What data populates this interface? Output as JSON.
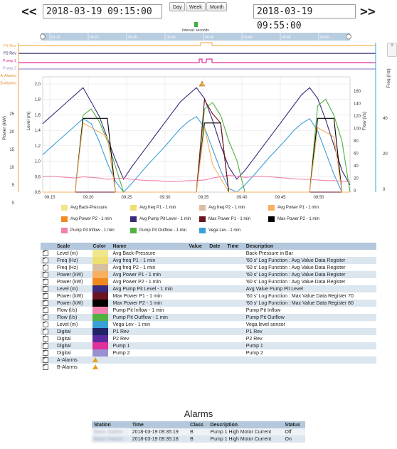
{
  "nav": {
    "prev": "<<",
    "next": ">>",
    "start": "2018-03-19 09:15:00",
    "end": "2018-03-19 09:55:00",
    "buttons": [
      "Day",
      "Week",
      "Month"
    ],
    "interval_label": "Interval: seconds"
  },
  "digital_labels": [
    "P1 Rev",
    "P2 Rev",
    "Pump 1",
    "Pump 2",
    "A-Alarms",
    "B-Alarms"
  ],
  "axes": {
    "power_label": "Power (kW)",
    "level_label": "Level (m)",
    "flow_label": "Flow (l/s)",
    "freq_label": "Freq (Hz)",
    "power_ticks": [
      "25",
      "20",
      "15",
      "10",
      "5",
      "0"
    ],
    "level_ticks": [
      "2,0",
      "1,8",
      "1,6",
      "1,4",
      "1,2",
      "1,0",
      "0,8",
      "0,6"
    ],
    "flow_ticks": [
      "160",
      "140",
      "120",
      "100",
      "80",
      "60",
      "40",
      "20",
      "0"
    ],
    "freq_ticks": [
      "40",
      "20",
      "0"
    ],
    "time_ticks": [
      "09:15",
      "09:20",
      "09:25",
      "09:30",
      "09:35",
      "09:40",
      "09:45",
      "09:50"
    ],
    "nav_ticks": [
      "09:15",
      "09:20",
      "09:25",
      "09:30",
      "09:35",
      "09:40",
      "09:45",
      "09:50"
    ]
  },
  "legend": [
    {
      "label": "Avg Back-Pressure",
      "color": "#f0e68c"
    },
    {
      "label": "Avg freq P1 - 1 min",
      "color": "#ede070"
    },
    {
      "label": "Avg freq P2 - 1 min",
      "color": "#d8bfa0"
    },
    {
      "label": "Avg Power P1 - 1 min",
      "color": "#f8b060"
    },
    {
      "label": "Avg Power P2 - 1 min",
      "color": "#f08a20"
    },
    {
      "label": "Avg Pump Pit Level - 1 min",
      "color": "#3a2a7a"
    },
    {
      "label": "Max Power P1 - 1 min",
      "color": "#6b1520"
    },
    {
      "label": "Max Power P2 - 1 min",
      "color": "#000000"
    },
    {
      "label": "Pump Pit Inflow - 1 min",
      "color": "#f080b0"
    },
    {
      "label": "Pump Pit Outflow - 1 min",
      "color": "#50b040"
    },
    {
      "label": "Vega Lev - 1 min",
      "color": "#3aa0d8"
    }
  ],
  "scale_table": {
    "headers": [
      "Scale",
      "Color",
      "Name",
      "Value",
      "Date",
      "Time",
      "Description"
    ],
    "rows": [
      {
        "scale": "Level (m)",
        "color": "#f0e68c",
        "name": "Avg Back-Pressure",
        "desc": "Back-Pressure in Bar"
      },
      {
        "scale": "Freq (Hz)",
        "color": "#ede070",
        "name": "Avg freq P1 - 1 min",
        "desc": "'60 s' Log Function : Avg Value Data Register"
      },
      {
        "scale": "Freq (Hz)",
        "color": "#d8bfa0",
        "name": "Avg freq P2 - 1 min",
        "desc": "'60 s' Log Function : Avg Value Data Register"
      },
      {
        "scale": "Power (kW)",
        "color": "#f8b060",
        "name": "Avg Power P1 - 1 min",
        "desc": "'60 s' Log Function : Avg Value Data Register"
      },
      {
        "scale": "Power (kW)",
        "color": "#f08a20",
        "name": "Avg Power P2 - 1 min",
        "desc": "'60 s' Log Function : Avg Value Data Register"
      },
      {
        "scale": "Level (m)",
        "color": "#3a2a7a",
        "name": "Avg Pump Pit Level - 1 min",
        "desc": "Avg Value Pump Pit Level"
      },
      {
        "scale": "Power (kW)",
        "color": "#6b1520",
        "name": "Max Power P1 - 1 min",
        "desc": "'60 s' Log Function : Max Value Data Register 70"
      },
      {
        "scale": "Power (kW)",
        "color": "#000000",
        "name": "Max Power P2 - 1 min",
        "desc": "'60 s' Log Function : Max Value Data Register 80"
      },
      {
        "scale": "Flow (l/s)",
        "color": "#f080b0",
        "name": "Pump Pit Inflow - 1 min",
        "desc": "Pump Pit Inflow"
      },
      {
        "scale": "Flow (l/s)",
        "color": "#50b040",
        "name": "Pump Pit Outflow - 1 min",
        "desc": "Pump Pit Outflow"
      },
      {
        "scale": "Level (m)",
        "color": "#3aa0d8",
        "name": "Vega Lev - 1 min",
        "desc": "Vega level sensor"
      },
      {
        "scale": "Digital",
        "color": "#222266",
        "name": "P1 Rev",
        "desc": "P1 Rev"
      },
      {
        "scale": "Digital",
        "color": "#5a2aa0",
        "name": "P2 Rev",
        "desc": "P2 Rev"
      },
      {
        "scale": "Digital",
        "color": "#e0309a",
        "name": "Pump 1",
        "desc": "Pump 1"
      },
      {
        "scale": "Digital",
        "color": "#9a8fd0",
        "name": "Pump 2",
        "desc": "Pump 2"
      },
      {
        "scale": "A-Alarms",
        "color": "",
        "name": "",
        "desc": "",
        "icon": "warning-icon"
      },
      {
        "scale": "B-Alarms",
        "color": "",
        "name": "",
        "desc": "",
        "icon": "warning-icon"
      }
    ]
  },
  "alarms": {
    "title": "Alarms",
    "headers": [
      "Station",
      "Time",
      "Class",
      "Description",
      "Status"
    ],
    "rows": [
      {
        "station": "Basic Station",
        "time": "2018-03-19 09:35:19",
        "class": "B",
        "desc": "Pump 1 High Motor Current",
        "status": "Off"
      },
      {
        "station": "Basic Station",
        "time": "2018-03-19 09:35:18",
        "class": "B",
        "desc": "Pump 1 High Motor Current",
        "status": "On"
      }
    ]
  },
  "chart_data": {
    "type": "line",
    "x": [
      "09:15",
      "09:16",
      "09:17",
      "09:18",
      "09:19",
      "09:20",
      "09:21",
      "09:22",
      "09:23",
      "09:24",
      "09:25",
      "09:26",
      "09:27",
      "09:28",
      "09:29",
      "09:30",
      "09:31",
      "09:32",
      "09:33",
      "09:34",
      "09:35",
      "09:36",
      "09:37",
      "09:38",
      "09:39",
      "09:40",
      "09:41",
      "09:42",
      "09:43",
      "09:44",
      "09:45",
      "09:46",
      "09:47",
      "09:48",
      "09:49",
      "09:50",
      "09:51",
      "09:52",
      "09:53"
    ],
    "series": [
      {
        "name": "Avg Pump Pit Level - 1 min",
        "axis": "level",
        "color": "#3a2a7a",
        "values": [
          1.55,
          1.65,
          1.75,
          1.85,
          1.95,
          2.05,
          1.85,
          1.65,
          1.35,
          1.05,
          0.78,
          0.95,
          1.1,
          1.25,
          1.4,
          1.55,
          1.7,
          1.85,
          1.95,
          2.05,
          1.9,
          1.6,
          1.25,
          0.95,
          0.78,
          0.9,
          1.05,
          1.2,
          1.35,
          1.5,
          1.65,
          1.8,
          1.95,
          2.05,
          1.9,
          1.6,
          1.25,
          0.9,
          0.7
        ]
      },
      {
        "name": "Vega Lev - 1 min",
        "axis": "level",
        "color": "#3aa0d8",
        "values": [
          1.12,
          1.22,
          1.32,
          1.42,
          1.52,
          1.62,
          1.55,
          1.3,
          1.0,
          0.75,
          0.6,
          0.72,
          0.85,
          0.98,
          1.1,
          1.22,
          1.35,
          1.48,
          1.58,
          1.65,
          1.5,
          1.2,
          0.9,
          0.65,
          0.6,
          0.7,
          0.82,
          0.95,
          1.08,
          1.2,
          1.32,
          1.45,
          1.55,
          1.62,
          1.45,
          1.15,
          0.85,
          0.6,
          0.6
        ]
      },
      {
        "name": "Pump Pit Inflow - 1 min",
        "axis": "flow",
        "color": "#f080b0",
        "values": [
          24,
          25,
          24,
          23,
          22,
          24,
          23,
          22,
          20,
          21,
          22,
          20,
          19,
          18,
          18,
          17,
          16,
          17,
          18,
          18,
          19,
          22,
          24,
          26,
          25,
          23,
          24,
          25,
          24,
          23,
          22,
          21,
          20,
          20,
          19,
          18,
          18,
          17,
          16
        ]
      },
      {
        "name": "Pump Pit Outflow - 1 min",
        "axis": "flow",
        "color": "#50b040",
        "values": [
          0,
          0,
          0,
          0,
          0,
          120,
          130,
          110,
          80,
          40,
          0,
          0,
          0,
          0,
          0,
          0,
          0,
          0,
          0,
          0,
          130,
          140,
          120,
          80,
          50,
          0,
          0,
          0,
          0,
          0,
          0,
          0,
          0,
          0,
          135,
          145,
          120,
          80,
          0
        ]
      },
      {
        "name": "Max Power P2 - 1 min",
        "axis": "power",
        "color": "#000000",
        "values": [
          0,
          0,
          0,
          0,
          0,
          16,
          16,
          16,
          16,
          0,
          0,
          0,
          0,
          0,
          0,
          0,
          0,
          0,
          0,
          0,
          15,
          15,
          15,
          0,
          0,
          0,
          0,
          0,
          0,
          0,
          0,
          0,
          0,
          0,
          16,
          16,
          16,
          0,
          0
        ]
      },
      {
        "name": "Max Power P1 - 1 min",
        "axis": "power",
        "color": "#6b1520",
        "values": [
          0,
          0,
          0,
          0,
          0,
          0,
          0,
          0,
          0,
          0,
          0,
          0,
          0,
          0,
          0,
          0,
          0,
          0,
          0,
          0,
          20,
          17,
          15,
          0,
          0,
          0,
          0,
          0,
          0,
          0,
          0,
          0,
          0,
          0,
          0,
          0,
          0,
          0,
          0
        ]
      },
      {
        "name": "Avg Power P1 - 1 min",
        "axis": "power",
        "color": "#f8b060",
        "values": [
          0,
          0,
          0,
          0,
          0,
          15,
          14,
          13,
          12,
          0,
          0,
          0,
          0,
          0,
          0,
          0,
          0,
          0,
          0,
          0,
          14,
          6,
          3,
          0,
          0,
          0,
          0,
          0,
          0,
          0,
          0,
          0,
          0,
          0,
          14,
          13,
          12,
          0,
          0
        ]
      }
    ]
  }
}
